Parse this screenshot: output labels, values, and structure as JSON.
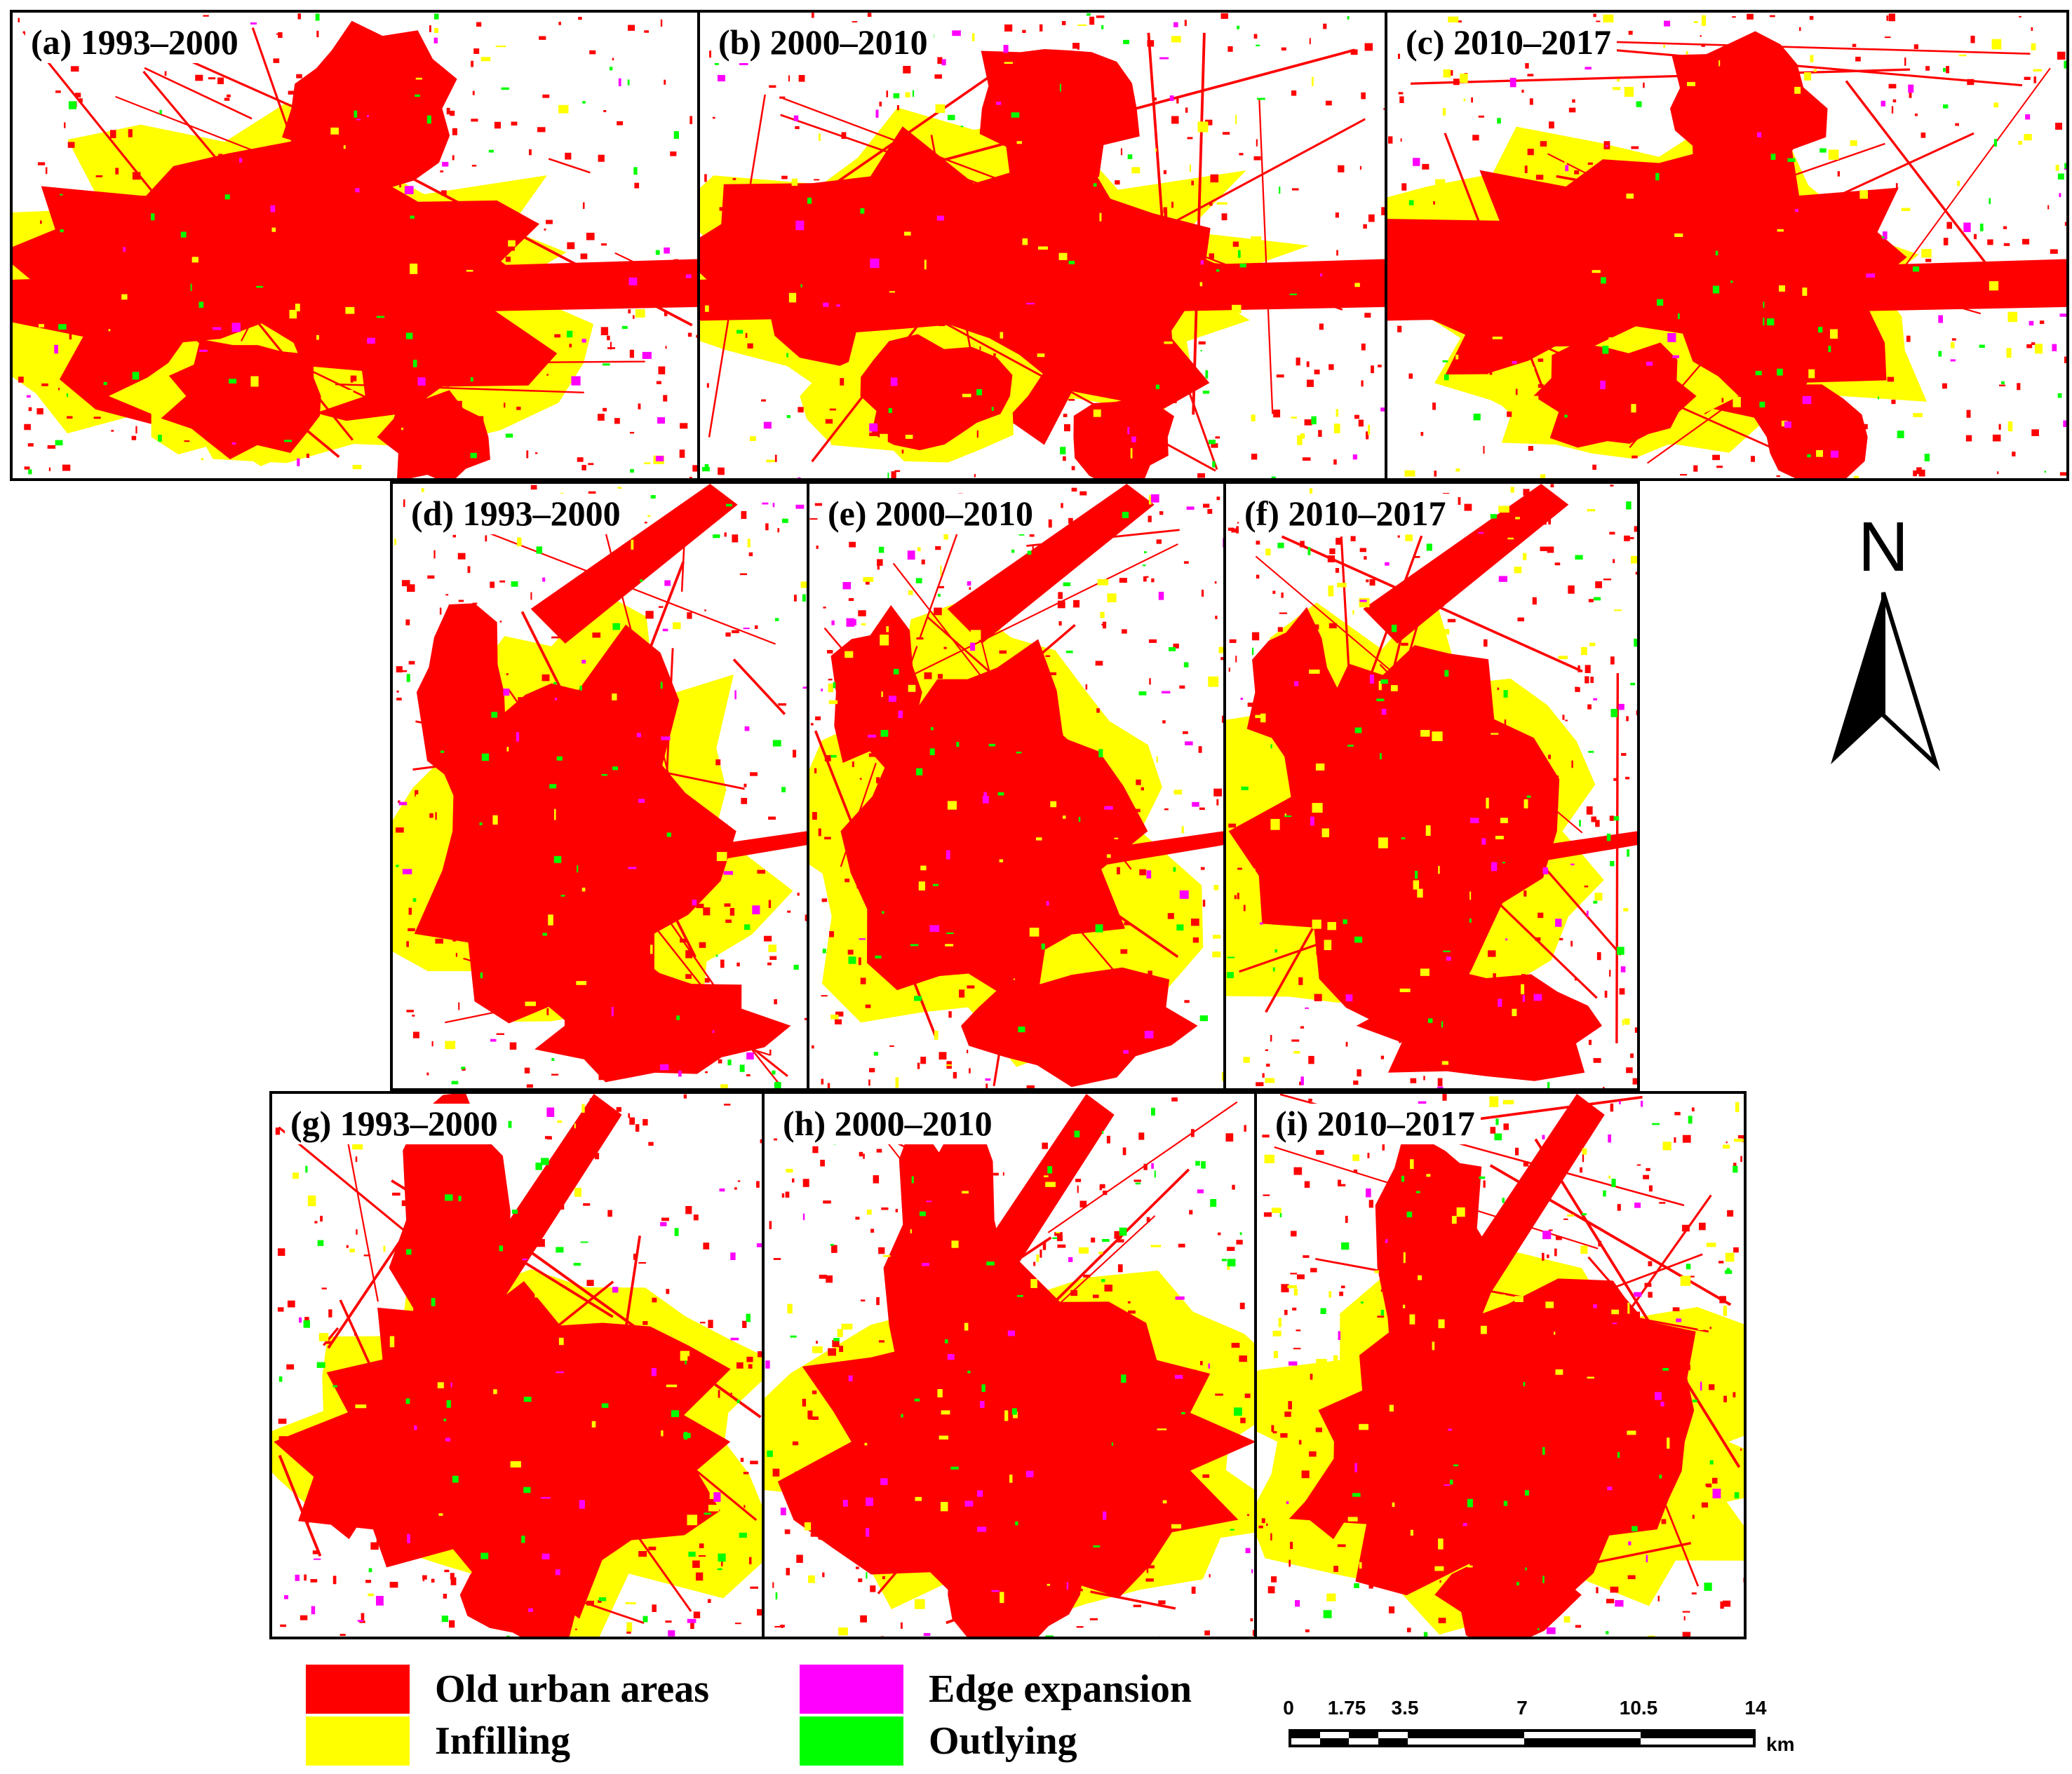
{
  "panels": [
    {
      "id": "a",
      "label": "(a) 1993–2000"
    },
    {
      "id": "b",
      "label": "(b) 2000–2010"
    },
    {
      "id": "c",
      "label": "(c) 2010–2017"
    },
    {
      "id": "d",
      "label": "(d) 1993–2000"
    },
    {
      "id": "e",
      "label": "(e) 2000–2010"
    },
    {
      "id": "f",
      "label": "(f) 2010–2017"
    },
    {
      "id": "g",
      "label": "(g) 1993–2000"
    },
    {
      "id": "h",
      "label": "(h) 2000–2010"
    },
    {
      "id": "i",
      "label": "(i) 2010–2017"
    }
  ],
  "north_arrow": {
    "letter": "N"
  },
  "legend": {
    "items": [
      {
        "label": "Old urban areas",
        "color": "#ff0000"
      },
      {
        "label": "Infilling",
        "color": "#ffff00"
      },
      {
        "label": "Edge expansion",
        "color": "#ff00ff"
      },
      {
        "label": "Outlying",
        "color": "#00ff00"
      }
    ]
  },
  "scale_bar": {
    "ticks": [
      "0",
      "1.75",
      "3.5",
      "7",
      "10.5",
      "14"
    ],
    "unit": "km"
  },
  "colors": {
    "old_urban": "#ff0000",
    "infilling": "#ffff00",
    "edge_expansion": "#ff00ff",
    "outlying": "#00ff00",
    "frame": "#000000"
  }
}
